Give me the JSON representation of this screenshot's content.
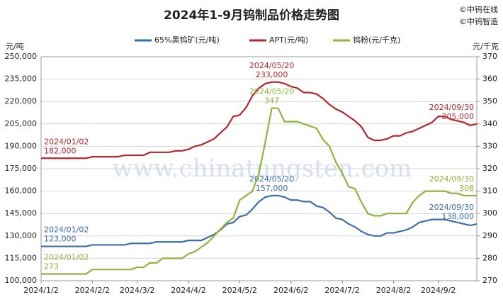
{
  "chart_data": {
    "type": "line",
    "title": "2024年1-9月钨制品价格走势图",
    "watermarks": [
      "©中钨在线",
      "©中钨智造"
    ],
    "background_text": "www.chinatungsten.com",
    "y_label": "元/吨",
    "y2_label": "元/千克",
    "categories": [
      "2024/1/2",
      null,
      null,
      null,
      null,
      null,
      null,
      null,
      "2024/2/2",
      null,
      null,
      null,
      null,
      null,
      null,
      "2024/3/2",
      null,
      null,
      null,
      null,
      null,
      null,
      null,
      "2024/4/2",
      null,
      null,
      null,
      null,
      null,
      null,
      null,
      "2024/5/2",
      null,
      null,
      null,
      null,
      null,
      null,
      null,
      "2024/6/2",
      null,
      null,
      null,
      null,
      null,
      null,
      null,
      "2024/7/2",
      null,
      null,
      null,
      null,
      null,
      null,
      null,
      "2024/8/2",
      null,
      null,
      null,
      null,
      null,
      null,
      "2024/9/2",
      null,
      null,
      null,
      null,
      null,
      null
    ],
    "ylim": [
      100000,
      250000
    ],
    "yticks": [
      {
        "value": 100000,
        "label": "100,000"
      },
      {
        "value": 115000,
        "label": "115,000"
      },
      {
        "value": 130000,
        "label": "130,000"
      },
      {
        "value": 145000,
        "label": "145,000"
      },
      {
        "value": 160000,
        "label": "160,000"
      },
      {
        "value": 175000,
        "label": "175,000"
      },
      {
        "value": 190000,
        "label": "190,000"
      },
      {
        "value": 205000,
        "label": "205,000"
      },
      {
        "value": 220000,
        "label": "220,000"
      },
      {
        "value": 235000,
        "label": "235,000"
      },
      {
        "value": 250000,
        "label": "250,000"
      }
    ],
    "y2lim": [
      270,
      370
    ],
    "y2ticks": [
      270,
      280,
      290,
      300,
      310,
      320,
      330,
      340,
      350,
      360,
      370
    ],
    "grid": true,
    "legend": "top",
    "series": [
      {
        "name": "65%黑钨矿(元/吨)",
        "color": "#3a6ea8",
        "values": [
          123000,
          123000,
          123000,
          123000,
          123000,
          123000,
          123000,
          123000,
          124000,
          124000,
          124000,
          124000,
          124000,
          124000,
          125000,
          125000,
          125000,
          125000,
          126000,
          126000,
          126000,
          126000,
          126000,
          127000,
          127000,
          127000,
          129000,
          131000,
          134000,
          138000,
          139000,
          143000,
          144000,
          148000,
          153000,
          156000,
          157000,
          157000,
          156000,
          154000,
          154000,
          153000,
          153000,
          150000,
          149000,
          146000,
          142000,
          141000,
          138000,
          136000,
          133000,
          131000,
          130000,
          130000,
          132000,
          132000,
          133000,
          134000,
          136000,
          139000,
          140000,
          141000,
          141000,
          141000,
          140000,
          139000,
          138000,
          137000,
          138000
        ],
        "value_labels": [
          "123,000",
          null,
          null,
          null,
          null,
          null,
          null,
          null,
          null,
          null,
          null,
          null,
          null,
          null,
          null,
          null,
          null,
          null,
          null,
          null,
          null,
          null,
          null,
          null,
          null,
          null,
          null,
          null,
          null,
          null,
          null,
          null,
          null,
          null,
          null,
          null,
          "157,000",
          null,
          null,
          null,
          null,
          null,
          null,
          null,
          null,
          null,
          null,
          null,
          null,
          null,
          null,
          null,
          null,
          null,
          null,
          null,
          null,
          null,
          null,
          null,
          null,
          null,
          null,
          null,
          null,
          null,
          null,
          null,
          "138,000"
        ],
        "date_labels": [
          "2024/01/02",
          null,
          null,
          null,
          null,
          null,
          null,
          null,
          null,
          null,
          null,
          null,
          null,
          null,
          null,
          null,
          null,
          null,
          null,
          null,
          null,
          null,
          null,
          null,
          null,
          null,
          null,
          null,
          null,
          null,
          null,
          null,
          null,
          null,
          null,
          null,
          "2024/05/20",
          null,
          null,
          null,
          null,
          null,
          null,
          null,
          null,
          null,
          null,
          null,
          null,
          null,
          null,
          null,
          null,
          null,
          null,
          null,
          null,
          null,
          null,
          null,
          null,
          null,
          null,
          null,
          null,
          null,
          null,
          null,
          "2024/09/30"
        ]
      },
      {
        "name": "APT(元/吨)",
        "color": "#b2282d",
        "values": [
          182000,
          182000,
          182000,
          182000,
          182000,
          182000,
          182000,
          182000,
          183000,
          183000,
          183000,
          183000,
          183000,
          184000,
          184000,
          184000,
          184000,
          186000,
          186000,
          186000,
          186000,
          187000,
          187000,
          188000,
          190000,
          191000,
          193000,
          195000,
          199000,
          203000,
          210000,
          211000,
          216000,
          224000,
          229000,
          232000,
          233000,
          233000,
          232000,
          230000,
          229000,
          226000,
          226000,
          225000,
          222000,
          218000,
          215000,
          213000,
          210000,
          207000,
          203000,
          196000,
          194000,
          194000,
          195000,
          197000,
          197000,
          199000,
          200000,
          202000,
          204000,
          206000,
          210000,
          210000,
          208000,
          207000,
          206000,
          204000,
          205000
        ],
        "value_labels": [
          "182,000",
          null,
          null,
          null,
          null,
          null,
          null,
          null,
          null,
          null,
          null,
          null,
          null,
          null,
          null,
          null,
          null,
          null,
          null,
          null,
          null,
          null,
          null,
          null,
          null,
          null,
          null,
          null,
          null,
          null,
          null,
          null,
          null,
          null,
          null,
          null,
          "233,000",
          null,
          null,
          null,
          null,
          null,
          null,
          null,
          null,
          null,
          null,
          null,
          null,
          null,
          null,
          null,
          null,
          null,
          null,
          null,
          null,
          null,
          null,
          null,
          null,
          null,
          null,
          null,
          null,
          null,
          null,
          null,
          "205,000"
        ],
        "date_labels": [
          "2024/01/02",
          null,
          null,
          null,
          null,
          null,
          null,
          null,
          null,
          null,
          null,
          null,
          null,
          null,
          null,
          null,
          null,
          null,
          null,
          null,
          null,
          null,
          null,
          null,
          null,
          null,
          null,
          null,
          null,
          null,
          null,
          null,
          null,
          null,
          null,
          null,
          "2024/05/20",
          null,
          null,
          null,
          null,
          null,
          null,
          null,
          null,
          null,
          null,
          null,
          null,
          null,
          null,
          null,
          null,
          null,
          null,
          null,
          null,
          null,
          null,
          null,
          null,
          null,
          null,
          null,
          null,
          null,
          null,
          null,
          "2024/09/30"
        ]
      },
      {
        "name": "钨粉(元/千克)",
        "color": "#8db43c",
        "axis": "y2",
        "values": [
          273,
          273,
          273,
          273,
          273,
          273,
          273,
          273,
          275,
          275,
          275,
          275,
          275,
          275,
          275,
          276,
          276,
          278,
          278,
          280,
          280,
          280,
          280,
          282,
          283,
          285,
          287,
          290,
          293,
          296,
          298,
          306,
          308,
          310,
          318,
          332,
          347,
          347,
          341,
          341,
          341,
          340,
          339,
          338,
          333,
          330,
          323,
          318,
          312,
          311,
          305,
          300,
          299,
          299,
          300,
          300,
          300,
          300,
          305,
          308,
          310,
          310,
          310,
          310,
          309,
          309,
          308,
          308,
          308
        ],
        "value_labels": [
          "273",
          null,
          null,
          null,
          null,
          null,
          null,
          null,
          null,
          null,
          null,
          null,
          null,
          null,
          null,
          null,
          null,
          null,
          null,
          null,
          null,
          null,
          null,
          null,
          null,
          null,
          null,
          null,
          null,
          null,
          null,
          null,
          null,
          null,
          null,
          null,
          "347",
          null,
          null,
          null,
          null,
          null,
          null,
          null,
          null,
          null,
          null,
          null,
          null,
          null,
          null,
          null,
          null,
          null,
          null,
          null,
          null,
          null,
          null,
          null,
          null,
          null,
          null,
          null,
          null,
          null,
          null,
          null,
          "308"
        ],
        "date_labels": [
          "2024/01/02",
          null,
          null,
          null,
          null,
          null,
          null,
          null,
          null,
          null,
          null,
          null,
          null,
          null,
          null,
          null,
          null,
          null,
          null,
          null,
          null,
          null,
          null,
          null,
          null,
          null,
          null,
          null,
          null,
          null,
          null,
          null,
          null,
          null,
          null,
          null,
          "2024/05/20",
          null,
          null,
          null,
          null,
          null,
          null,
          null,
          null,
          null,
          null,
          null,
          null,
          null,
          null,
          null,
          null,
          null,
          null,
          null,
          null,
          null,
          null,
          null,
          null,
          null,
          null,
          null,
          null,
          null,
          null,
          null,
          "2024/09/30"
        ]
      }
    ]
  }
}
